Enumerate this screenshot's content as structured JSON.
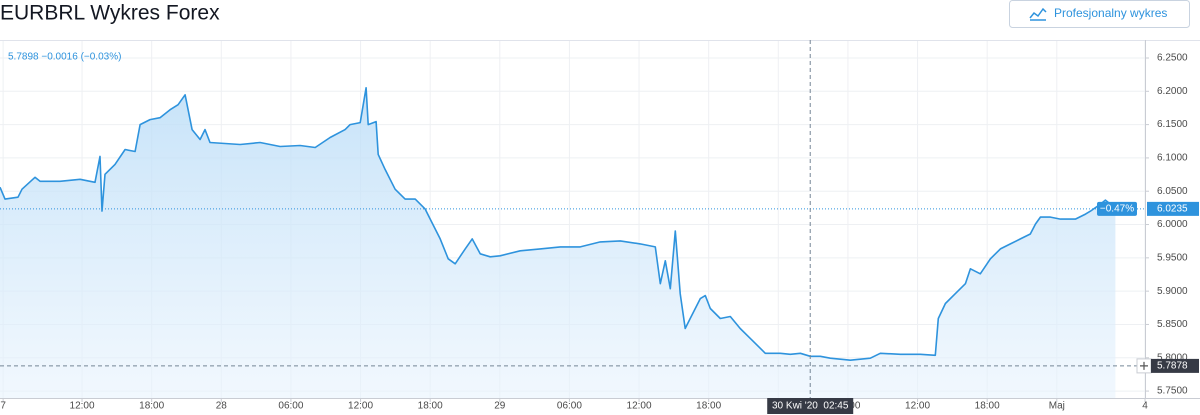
{
  "chart_data": {
    "type": "line",
    "title": "EURBRL Wykres Forex",
    "button": "Profesjonalny wykres",
    "status": "5.7898 −0.0016 (−0.03%)",
    "color": "#2e93dd",
    "grid": true,
    "x": [
      4.93,
      5.36,
      6.48,
      6.83,
      7.95,
      8.38,
      10.1,
      11.83,
      13.12,
      13.55,
      13.72,
      13.98,
      14.84,
      15.71,
      16.57,
      17.0,
      17.86,
      18.72,
      19.59,
      20.28,
      20.88,
      21.48,
      22.17,
      22.6,
      23.03,
      25.62,
      27.34,
      29.07,
      30.79,
      32.09,
      33.38,
      34.67,
      35.1,
      35.97,
      36.48,
      36.66,
      37.34,
      37.52,
      38.12,
      38.98,
      39.84,
      40.71,
      41.14,
      41.57,
      42.0,
      42.86,
      43.55,
      44.16,
      45.02,
      45.62,
      46.31,
      47.17,
      48.03,
      49.76,
      51.48,
      53.21,
      54.93,
      56.66,
      58.38,
      60.1,
      61.4,
      61.83,
      62.26,
      62.69,
      63.12,
      63.55,
      63.98,
      64.41,
      65.28,
      65.71,
      66.14,
      67.0,
      67.86,
      68.72,
      69.59,
      70.45,
      70.88,
      72.17,
      73.03,
      73.9,
      74.76,
      75.62,
      76.48,
      78.21,
      79.93,
      80.79,
      82.52,
      84.24,
      85.53,
      85.79,
      86.4,
      87.26,
      88.12,
      88.55,
      89.41,
      90.28,
      91.14,
      92.0,
      92.86,
      93.72,
      94.16,
      94.59,
      95.45,
      96.31,
      97.6,
      98.47,
      98.9,
      99.76,
      100.19,
      100.62,
      101.05
    ],
    "values": [
      6.056,
      6.0381,
      6.041,
      6.053,
      6.0709,
      6.0649,
      6.0649,
      6.0679,
      6.0634,
      6.1022,
      6.0202,
      6.0754,
      6.0903,
      6.1127,
      6.1097,
      6.15,
      6.1575,
      6.1604,
      6.1724,
      6.1799,
      6.1948,
      6.1425,
      6.1276,
      6.1425,
      6.1231,
      6.1202,
      6.1231,
      6.1172,
      6.1187,
      6.1157,
      6.1306,
      6.1425,
      6.15,
      6.153,
      6.2052,
      6.15,
      6.1545,
      6.1052,
      6.0828,
      6.053,
      6.0381,
      6.0381,
      6.0306,
      6.0231,
      6.0082,
      5.9784,
      5.9485,
      5.941,
      5.9634,
      5.9784,
      5.956,
      5.9515,
      5.953,
      5.9605,
      5.9634,
      5.9664,
      5.9664,
      5.9739,
      5.9754,
      5.9709,
      5.9664,
      5.9112,
      5.9455,
      5.9037,
      5.9903,
      5.8963,
      5.844,
      5.859,
      5.8888,
      5.8933,
      5.8739,
      5.859,
      5.8619,
      5.844,
      5.8291,
      5.8142,
      5.8067,
      5.8067,
      5.8052,
      5.8067,
      5.8022,
      5.8022,
      5.7993,
      5.7963,
      5.7993,
      5.8067,
      5.8052,
      5.8052,
      5.8037,
      5.859,
      5.8814,
      5.8963,
      5.9112,
      5.9336,
      5.9261,
      5.9485,
      5.9634,
      5.9709,
      5.9784,
      5.9858,
      6.0008,
      6.0112,
      6.0112,
      6.0082,
      6.0082,
      6.0157,
      6.0202,
      6.0306,
      6.0366,
      6.0306,
      6.0261
    ],
    "xlim": [
      4.93,
      103.6
    ],
    "ylim": [
      5.7396,
      6.277
    ],
    "xticks": [
      {
        "value": 5.2,
        "label": "7"
      },
      {
        "value": 12,
        "label": "12:00"
      },
      {
        "value": 18,
        "label": "18:00"
      },
      {
        "value": 24,
        "label": "28"
      },
      {
        "value": 30,
        "label": "06:00"
      },
      {
        "value": 36,
        "label": "12:00"
      },
      {
        "value": 42,
        "label": "18:00"
      },
      {
        "value": 48,
        "label": "29"
      },
      {
        "value": 54,
        "label": "06:00"
      },
      {
        "value": 60,
        "label": "12:00"
      },
      {
        "value": 66,
        "label": "18:00"
      },
      {
        "value": 72,
        "label": "30"
      },
      {
        "value": 78,
        "label": "06:00"
      },
      {
        "value": 84,
        "label": "12:00"
      },
      {
        "value": 90,
        "label": "18:00"
      },
      {
        "value": 96,
        "label": "Maj"
      },
      {
        "value": 103.6,
        "label": "4"
      }
    ],
    "yticks": [
      {
        "value": 6.25,
        "label": "6.2500"
      },
      {
        "value": 6.2,
        "label": "6.2000"
      },
      {
        "value": 6.15,
        "label": "6.1500"
      },
      {
        "value": 6.1,
        "label": "6.1000"
      },
      {
        "value": 6.05,
        "label": "6.0500"
      },
      {
        "value": 6.0,
        "label": "6.0000"
      },
      {
        "value": 5.95,
        "label": "5.9500"
      },
      {
        "value": 5.9,
        "label": "5.9000"
      },
      {
        "value": 5.85,
        "label": "5.8500"
      },
      {
        "value": 5.8,
        "label": "5.8000"
      },
      {
        "value": 5.75,
        "label": "5.7500"
      }
    ],
    "last_price": 6.0235,
    "last_change": "−0.47%",
    "low_line": 5.7878,
    "crosshair": {
      "x": 74.75,
      "label": "30 Kwi '20  02:45"
    }
  }
}
